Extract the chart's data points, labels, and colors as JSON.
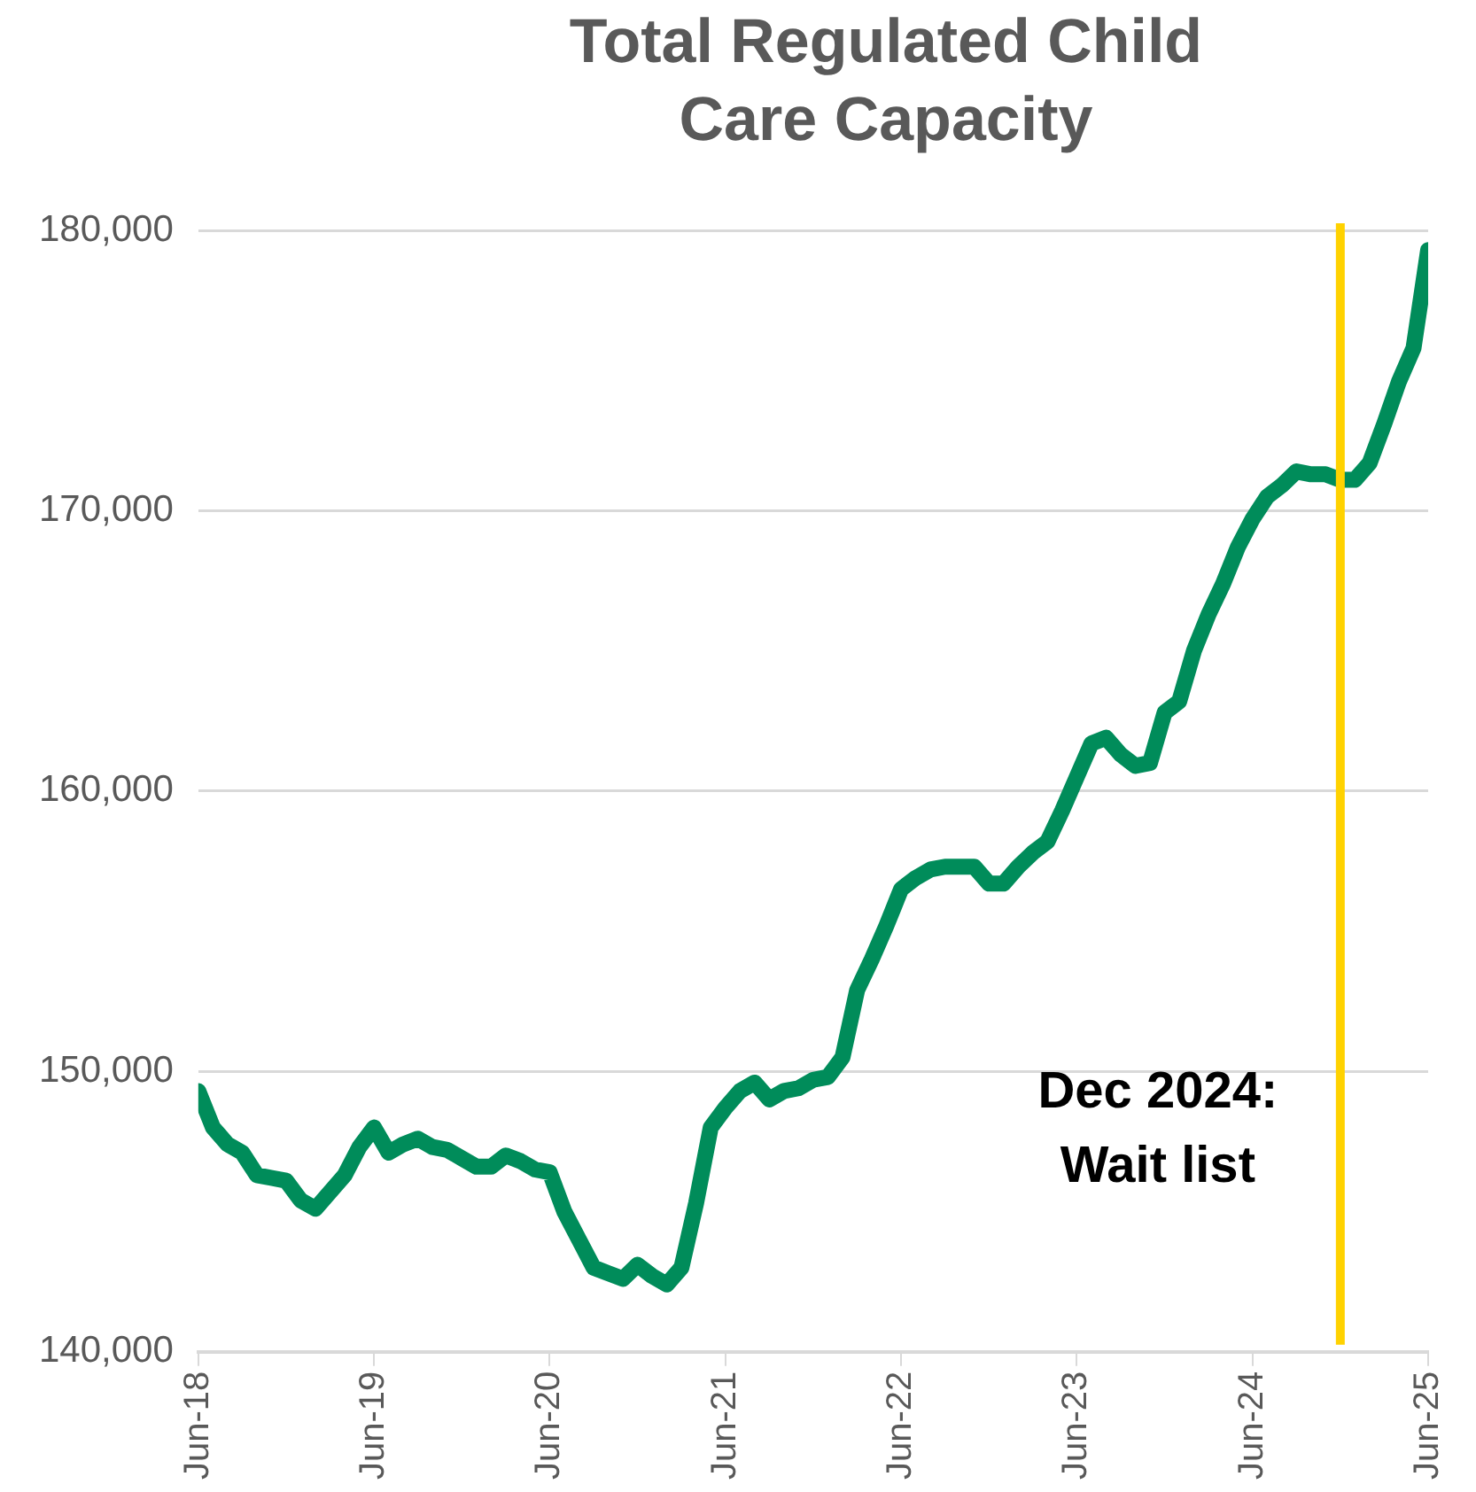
{
  "chart_data": {
    "type": "line",
    "title": "Total Regulated Child Care Capacity",
    "x": [
      "2018-06",
      "2018-07",
      "2018-08",
      "2018-09",
      "2018-10",
      "2018-11",
      "2018-12",
      "2019-01",
      "2019-02",
      "2019-03",
      "2019-04",
      "2019-05",
      "2019-06",
      "2019-07",
      "2019-08",
      "2019-09",
      "2019-10",
      "2019-11",
      "2019-12",
      "2020-01",
      "2020-02",
      "2020-03",
      "2020-04",
      "2020-05",
      "2020-06",
      "2020-07",
      "2020-08",
      "2020-09",
      "2020-10",
      "2020-11",
      "2020-12",
      "2021-01",
      "2021-02",
      "2021-03",
      "2021-04",
      "2021-05",
      "2021-06",
      "2021-07",
      "2021-08",
      "2021-09",
      "2021-10",
      "2021-11",
      "2021-12",
      "2022-01",
      "2022-02",
      "2022-03",
      "2022-04",
      "2022-05",
      "2022-06",
      "2022-07",
      "2022-08",
      "2022-09",
      "2022-10",
      "2022-11",
      "2022-12",
      "2023-01",
      "2023-02",
      "2023-03",
      "2023-04",
      "2023-05",
      "2023-06",
      "2023-07",
      "2023-08",
      "2023-09",
      "2023-10",
      "2023-11",
      "2023-12",
      "2024-01",
      "2024-02",
      "2024-03",
      "2024-04",
      "2024-05",
      "2024-06",
      "2024-07",
      "2024-08",
      "2024-09",
      "2024-10",
      "2024-11",
      "2024-12",
      "2025-01",
      "2025-02",
      "2025-03",
      "2025-04",
      "2025-05",
      "2025-06"
    ],
    "series": [
      {
        "color": "#008c5a",
        "values": [
          149300,
          148000,
          147400,
          147100,
          146300,
          146200,
          146100,
          145400,
          145100,
          145700,
          146300,
          147300,
          148000,
          147100,
          147400,
          147600,
          147300,
          147200,
          146900,
          146600,
          146600,
          147000,
          146800,
          146500,
          146400,
          145000,
          144000,
          143000,
          142800,
          142600,
          143100,
          142700,
          142400,
          143000,
          145300,
          148000,
          148700,
          149300,
          149600,
          149000,
          149300,
          149400,
          149700,
          149800,
          150500,
          152900,
          154000,
          155200,
          156500,
          156900,
          157200,
          157300,
          157300,
          157300,
          156700,
          156700,
          157300,
          157800,
          158200,
          159300,
          160500,
          161700,
          161900,
          161300,
          160900,
          161000,
          162800,
          163200,
          165000,
          166300,
          167400,
          168700,
          169700,
          170500,
          170900,
          171400,
          171300,
          171300,
          171100,
          171100,
          171700,
          173100,
          174600,
          175800,
          179300
        ]
      }
    ],
    "xlim": [
      "2018-06",
      "2025-06"
    ],
    "xticks": [
      {
        "value": "2018-06",
        "label": "Jun-18"
      },
      {
        "value": "2019-06",
        "label": "Jun-19"
      },
      {
        "value": "2020-06",
        "label": "Jun-20"
      },
      {
        "value": "2021-06",
        "label": "Jun-21"
      },
      {
        "value": "2022-06",
        "label": "Jun-22"
      },
      {
        "value": "2023-06",
        "label": "Jun-23"
      },
      {
        "value": "2024-06",
        "label": "Jun-24"
      },
      {
        "value": "2025-06",
        "label": "Jun-25"
      }
    ],
    "ylim": [
      140000,
      180000
    ],
    "yticks": [
      {
        "value": 140000,
        "label": "140,000"
      },
      {
        "value": 150000,
        "label": "150,000"
      },
      {
        "value": 160000,
        "label": "160,000"
      },
      {
        "value": 170000,
        "label": "170,000"
      },
      {
        "value": 180000,
        "label": "180,000"
      }
    ],
    "ref_lines": [
      {
        "axis": "x",
        "value": "2024-12",
        "label": "Dec 2024:\nWait list",
        "color": "#ffd200"
      }
    ],
    "grid": "y",
    "legend": false,
    "marker": "none",
    "line_style": "solid"
  }
}
